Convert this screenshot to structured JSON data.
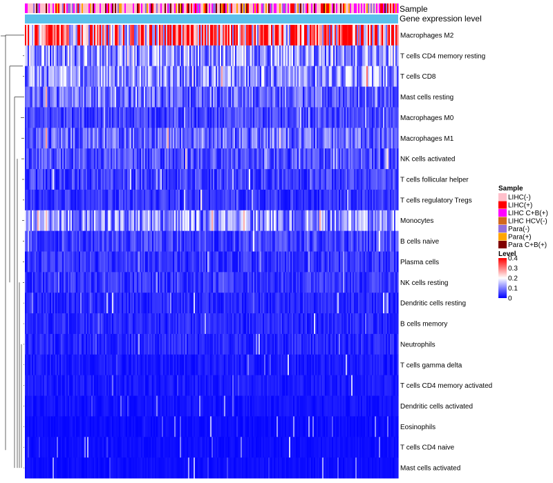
{
  "chart_data": {
    "type": "heatmap",
    "title": "",
    "annotation_tracks": [
      {
        "name": "Sample"
      },
      {
        "name": "Gene expression level"
      }
    ],
    "rows": [
      {
        "label": "Macrophages M2",
        "level": 0.3
      },
      {
        "label": "T cells CD4 memory resting",
        "level": 0.12
      },
      {
        "label": "T cells CD8",
        "level": 0.11
      },
      {
        "label": "Mast cells resting",
        "level": 0.08
      },
      {
        "label": "Macrophages M0",
        "level": 0.05
      },
      {
        "label": "Macrophages M1",
        "level": 0.08
      },
      {
        "label": "NK cells activated",
        "level": 0.06
      },
      {
        "label": "T cells follicular helper",
        "level": 0.05
      },
      {
        "label": "T cells regulatory  Tregs",
        "level": 0.04
      },
      {
        "label": "Monocytes",
        "level": 0.11
      },
      {
        "label": "B cells naive",
        "level": 0.05
      },
      {
        "label": "Plasma cells",
        "level": 0.04
      },
      {
        "label": "NK cells resting",
        "level": 0.04
      },
      {
        "label": "Dendritic cells resting",
        "level": 0.03
      },
      {
        "label": "B cells memory",
        "level": 0.03
      },
      {
        "label": "Neutrophils",
        "level": 0.03
      },
      {
        "label": "T cells gamma delta",
        "level": 0.02
      },
      {
        "label": "T cells CD4 memory activated",
        "level": 0.02
      },
      {
        "label": "Dendritic cells activated",
        "level": 0.015
      },
      {
        "label": "Eosinophils",
        "level": 0.01
      },
      {
        "label": "T cells CD4 naive",
        "level": 0.01
      },
      {
        "label": "Mast cells activated",
        "level": 0.01
      }
    ],
    "legend_sample": {
      "title": "Sample",
      "entries": [
        {
          "label": "LIHC(-)",
          "color": "#FFC0CB"
        },
        {
          "label": "LIHC(+)",
          "color": "#FF0000"
        },
        {
          "label": "LIHC C+B(+)",
          "color": "#FF00FF"
        },
        {
          "label": "LIHC HCV(-)",
          "color": "#D2691E"
        },
        {
          "label": "Para(-)",
          "color": "#9370DB"
        },
        {
          "label": "Para(+)",
          "color": "#FFA500"
        },
        {
          "label": "Para C+B(+)",
          "color": "#800000"
        }
      ]
    },
    "legend_level": {
      "title": "Level",
      "ticks": [
        "0.4",
        "0.3",
        "0.2",
        "0.1",
        "0"
      ],
      "min": 0,
      "max": 0.4,
      "colors": [
        "#0000FF",
        "#FFFFFF",
        "#FF0000"
      ]
    },
    "gene_expression_color": "#5BC0EB"
  }
}
